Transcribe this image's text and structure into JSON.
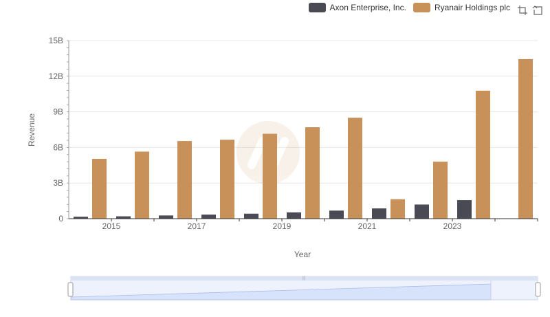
{
  "legend": {
    "series_a": "Axon Enterprise, Inc.",
    "series_b": "Ryanair Holdings plc"
  },
  "toolbox": {
    "zoom_icon": "zoom-select-icon",
    "restore_icon": "restore-icon"
  },
  "colors": {
    "series_a": "#4a4a55",
    "series_b": "#c8915a",
    "grid": "#e6e6e6",
    "axis": "#666666",
    "slider_fill": "#d7e2fb",
    "slider_border": "#c8d3ec"
  },
  "chart_data": {
    "type": "bar",
    "xlabel": "Year",
    "ylabel": "Revenue",
    "ylim": [
      0,
      15000000000
    ],
    "yticks": [
      "0",
      "3B",
      "6B",
      "9B",
      "12B",
      "15B"
    ],
    "categories": [
      "2014",
      "2015",
      "2016",
      "2017",
      "2018",
      "2019",
      "2020",
      "2021",
      "2022",
      "2023",
      "2024"
    ],
    "xtick_labels": [
      "2015",
      "2017",
      "2019",
      "2021",
      "2023"
    ],
    "series": [
      {
        "name": "Axon Enterprise, Inc.",
        "values": [
          164500000,
          197900000,
          268200000,
          343800000,
          420100000,
          530900000,
          681000000,
          863400000,
          1190000000,
          1560000000,
          null
        ]
      },
      {
        "name": "Ryanair Holdings plc",
        "values": [
          5040000000,
          5650000000,
          6540000000,
          6650000000,
          7150000000,
          7700000000,
          8500000000,
          1640000000,
          4800000000,
          10780000000,
          13440000000
        ]
      }
    ],
    "grid": true,
    "legend_position": "top-right"
  }
}
